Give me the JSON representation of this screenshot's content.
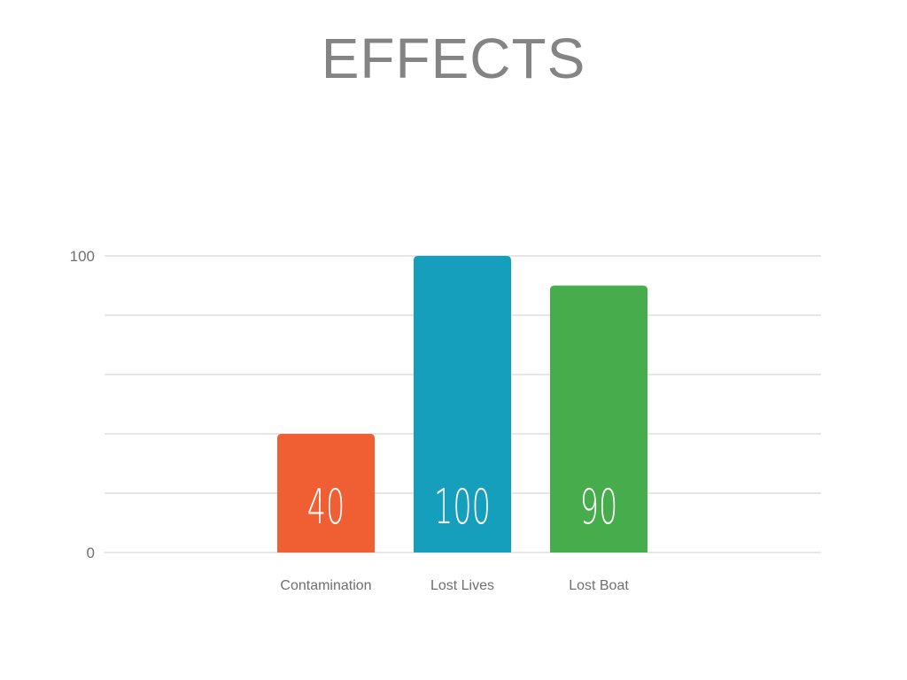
{
  "slide": {
    "title": "EFFECTS"
  },
  "chart_data": {
    "type": "bar",
    "title": "",
    "xlabel": "",
    "ylabel": "",
    "categories": [
      "Contamination",
      "Lost Lives",
      "Lost Boat"
    ],
    "values": [
      40,
      100,
      90
    ],
    "value_labels": [
      "40",
      "100",
      "90"
    ],
    "ylim": [
      0,
      100
    ],
    "y_tick_labels": [
      "0",
      "100"
    ],
    "gridlines": 6,
    "grid": true,
    "legend": "none",
    "colors": [
      "#f05f34",
      "#169fbc",
      "#47ac4b"
    ],
    "grid_color": "#dddddd"
  }
}
